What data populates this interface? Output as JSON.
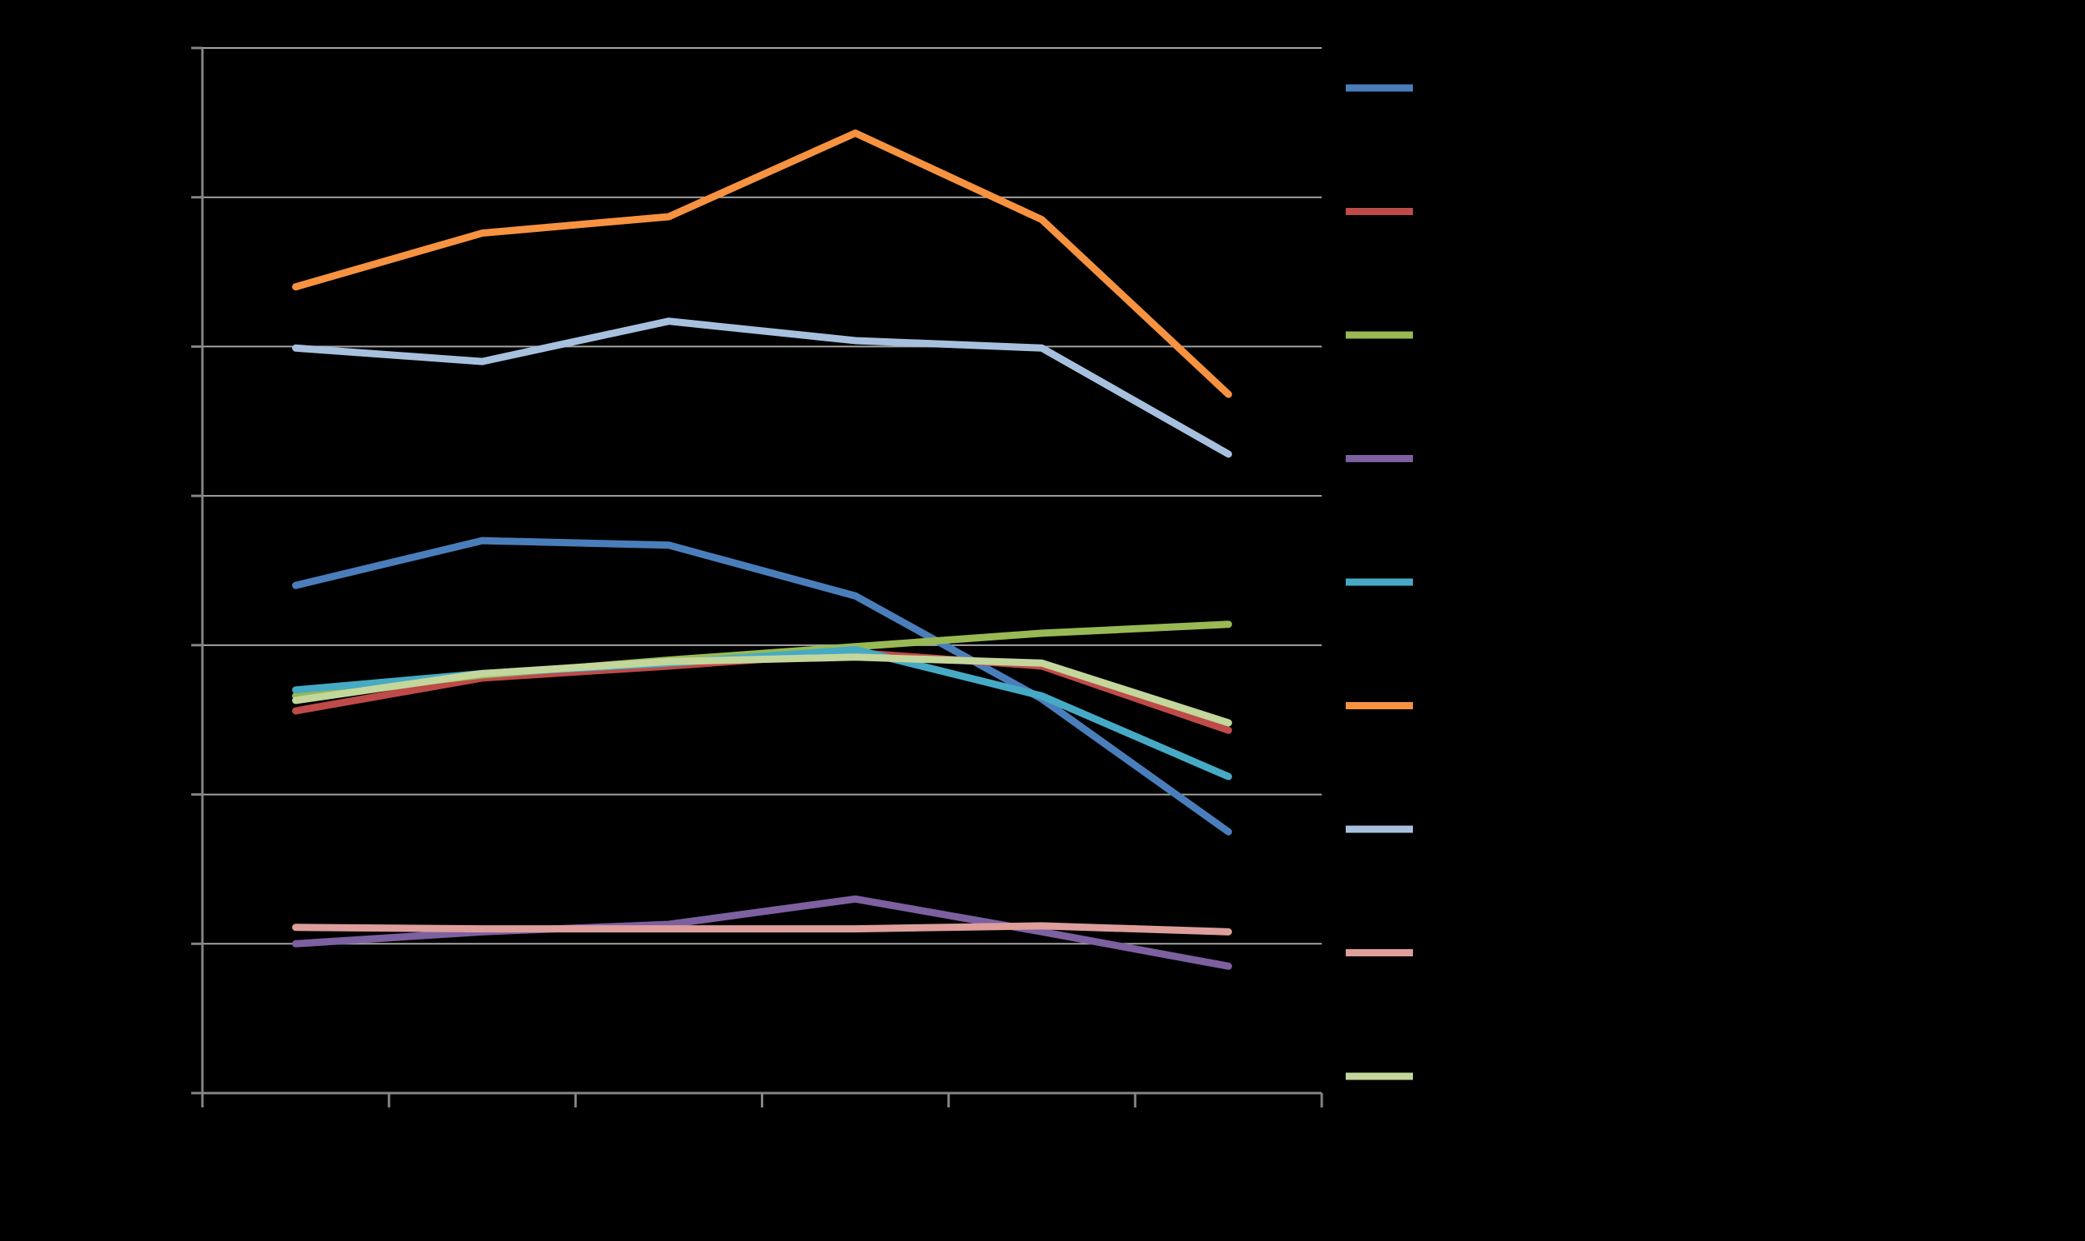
{
  "chart_data": {
    "type": "line",
    "title": "",
    "xlabel": "",
    "ylabel": "",
    "grid": true,
    "legend_position": "right",
    "background_color": "#000000",
    "gridline_color": "#a6a6a6",
    "axis_color": "#868686",
    "ylim": [
      0,
      7
    ],
    "y_ticks": [],
    "x_ticks": [],
    "series": [
      {
        "name": "",
        "color": "#4a7ebb",
        "values": [
          3.4,
          3.7,
          3.67,
          3.33,
          2.64,
          1.75
        ]
      },
      {
        "name": "",
        "color": "#be4b48",
        "values": [
          2.56,
          2.78,
          2.86,
          2.95,
          2.86,
          2.43
        ]
      },
      {
        "name": "",
        "color": "#98b954",
        "values": [
          2.66,
          2.8,
          2.9,
          2.99,
          3.08,
          3.14
        ]
      },
      {
        "name": "",
        "color": "#7d60a0",
        "values": [
          1.0,
          1.08,
          1.13,
          1.3,
          1.08,
          0.85
        ]
      },
      {
        "name": "",
        "color": "#46aac5",
        "values": [
          2.7,
          2.81,
          2.88,
          2.97,
          2.66,
          2.12
        ]
      },
      {
        "name": "",
        "color": "#f69240",
        "values": [
          5.4,
          5.76,
          5.87,
          6.43,
          5.85,
          4.68
        ]
      },
      {
        "name": "",
        "color": "#a7c0de",
        "values": [
          4.99,
          4.9,
          5.17,
          5.04,
          4.99,
          4.28
        ]
      },
      {
        "name": "",
        "color": "#dd9e9c",
        "values": [
          1.11,
          1.1,
          1.1,
          1.1,
          1.12,
          1.08
        ]
      },
      {
        "name": "",
        "color": "#c3d69b",
        "values": [
          2.63,
          2.81,
          2.89,
          2.92,
          2.88,
          2.48
        ]
      }
    ]
  }
}
